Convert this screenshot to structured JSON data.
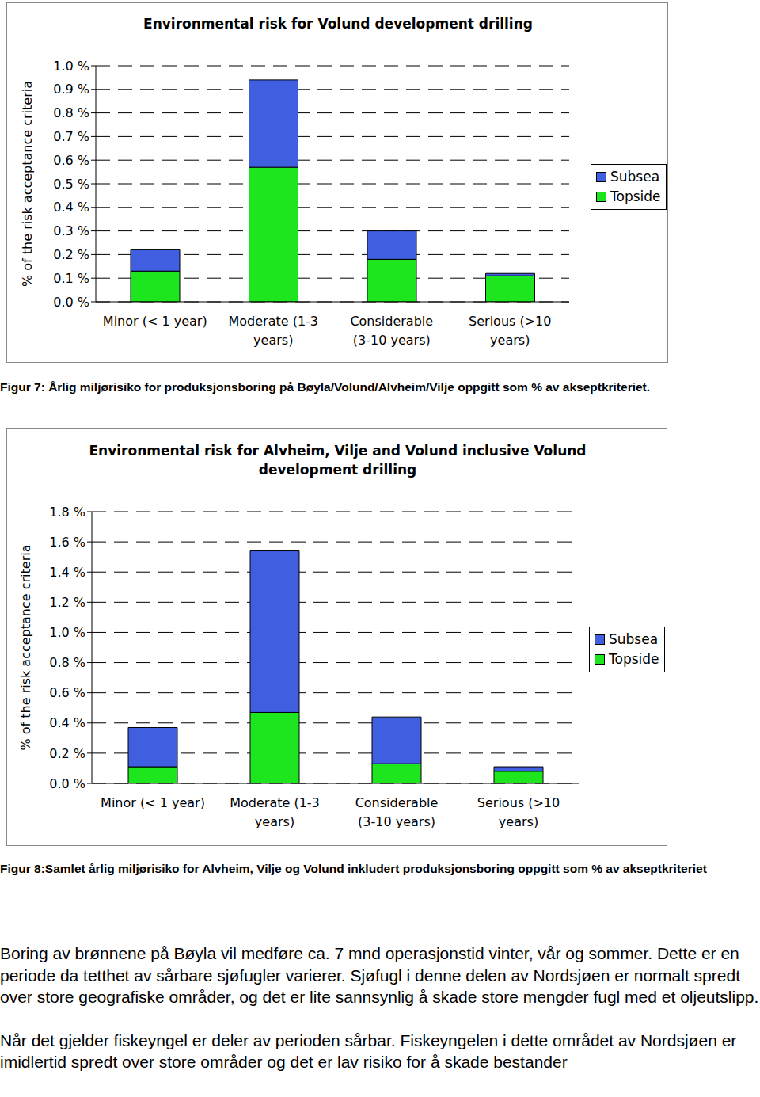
{
  "chart_data": [
    {
      "type": "bar",
      "title": "Environmental risk for Volund development drilling",
      "y_label": "% of the risk acceptance criteria",
      "categories": [
        "Minor (< 1 year)",
        "Moderate (1-3 years)",
        "Considerable (3-10 years)",
        "Serious (>10 years)"
      ],
      "series": [
        {
          "name": "Subsea",
          "color": "#3f5fe0",
          "values": [
            0.09,
            0.37,
            0.12,
            0.01
          ]
        },
        {
          "name": "Topside",
          "color": "#1ee61e",
          "values": [
            0.13,
            0.57,
            0.18,
            0.11
          ]
        }
      ],
      "stacked": true,
      "grid": true,
      "legend": "right",
      "ylim": [
        0,
        1.0
      ],
      "yticks": [
        {
          "value": 0,
          "label": "0.0 %"
        },
        {
          "value": 0.1,
          "label": "0.1 %"
        },
        {
          "value": 0.2,
          "label": "0.2 %"
        },
        {
          "value": 0.3,
          "label": "0.3 %"
        },
        {
          "value": 0.4,
          "label": "0.4 %"
        },
        {
          "value": 0.5,
          "label": "0.5 %"
        },
        {
          "value": 0.6,
          "label": "0.6 %"
        },
        {
          "value": 0.7,
          "label": "0.7 %"
        },
        {
          "value": 0.8,
          "label": "0.8 %"
        },
        {
          "value": 0.9,
          "label": "0.9 %"
        },
        {
          "value": 1.0,
          "label": "1.0 %"
        }
      ]
    },
    {
      "type": "bar",
      "title": "Environmental risk for Alvheim, Vilje and Volund inclusive Volund development drilling",
      "y_label": "% of the risk acceptance criteria",
      "categories": [
        "Minor (< 1 year)",
        "Moderate (1-3 years)",
        "Considerable (3-10 years)",
        "Serious (>10 years)"
      ],
      "series": [
        {
          "name": "Subsea",
          "color": "#3f5fe0",
          "values": [
            0.26,
            1.07,
            0.31,
            0.03
          ]
        },
        {
          "name": "Topside",
          "color": "#1ee61e",
          "values": [
            0.11,
            0.47,
            0.13,
            0.08
          ]
        }
      ],
      "stacked": true,
      "grid": true,
      "legend": "right",
      "ylim": [
        0,
        1.8
      ],
      "yticks": [
        {
          "value": 0,
          "label": "0.0 %"
        },
        {
          "value": 0.2,
          "label": "0.2 %"
        },
        {
          "value": 0.4,
          "label": "0.4 %"
        },
        {
          "value": 0.6,
          "label": "0.6 %"
        },
        {
          "value": 0.8,
          "label": "0.8 %"
        },
        {
          "value": 1.0,
          "label": "1.0 %"
        },
        {
          "value": 1.2,
          "label": "1.2 %"
        },
        {
          "value": 1.4,
          "label": "1.4 %"
        },
        {
          "value": 1.6,
          "label": "1.6 %"
        },
        {
          "value": 1.8,
          "label": "1.8 %"
        }
      ]
    }
  ],
  "captions": [
    "Figur 7: Årlig miljørisiko for produksjonsboring på Bøyla/Volund/Alvheim/Vilje oppgitt som % av akseptkriteriet.",
    "Figur 8:Samlet årlig miljørisiko for Alvheim, Vilje og Volund inkludert produksjonsboring oppgitt som % av akseptkriteriet"
  ],
  "paragraphs": [
    "Boring av brønnene på Bøyla vil medføre ca. 7 mnd operasjonstid vinter, vår og sommer. Dette er en periode da tetthet av sårbare sjøfugler varierer. Sjøfugl i denne delen av Nordsjøen er normalt spredt over store geografiske områder, og det er lite sannsynlig å skade store mengder fugl med et oljeutslipp.",
    "Når det gjelder fiskeyngel er deler av perioden sårbar. Fiskeyngelen i dette området av Nordsjøen er imidlertid spredt over store områder og det er lav risiko for å skade bestander"
  ]
}
